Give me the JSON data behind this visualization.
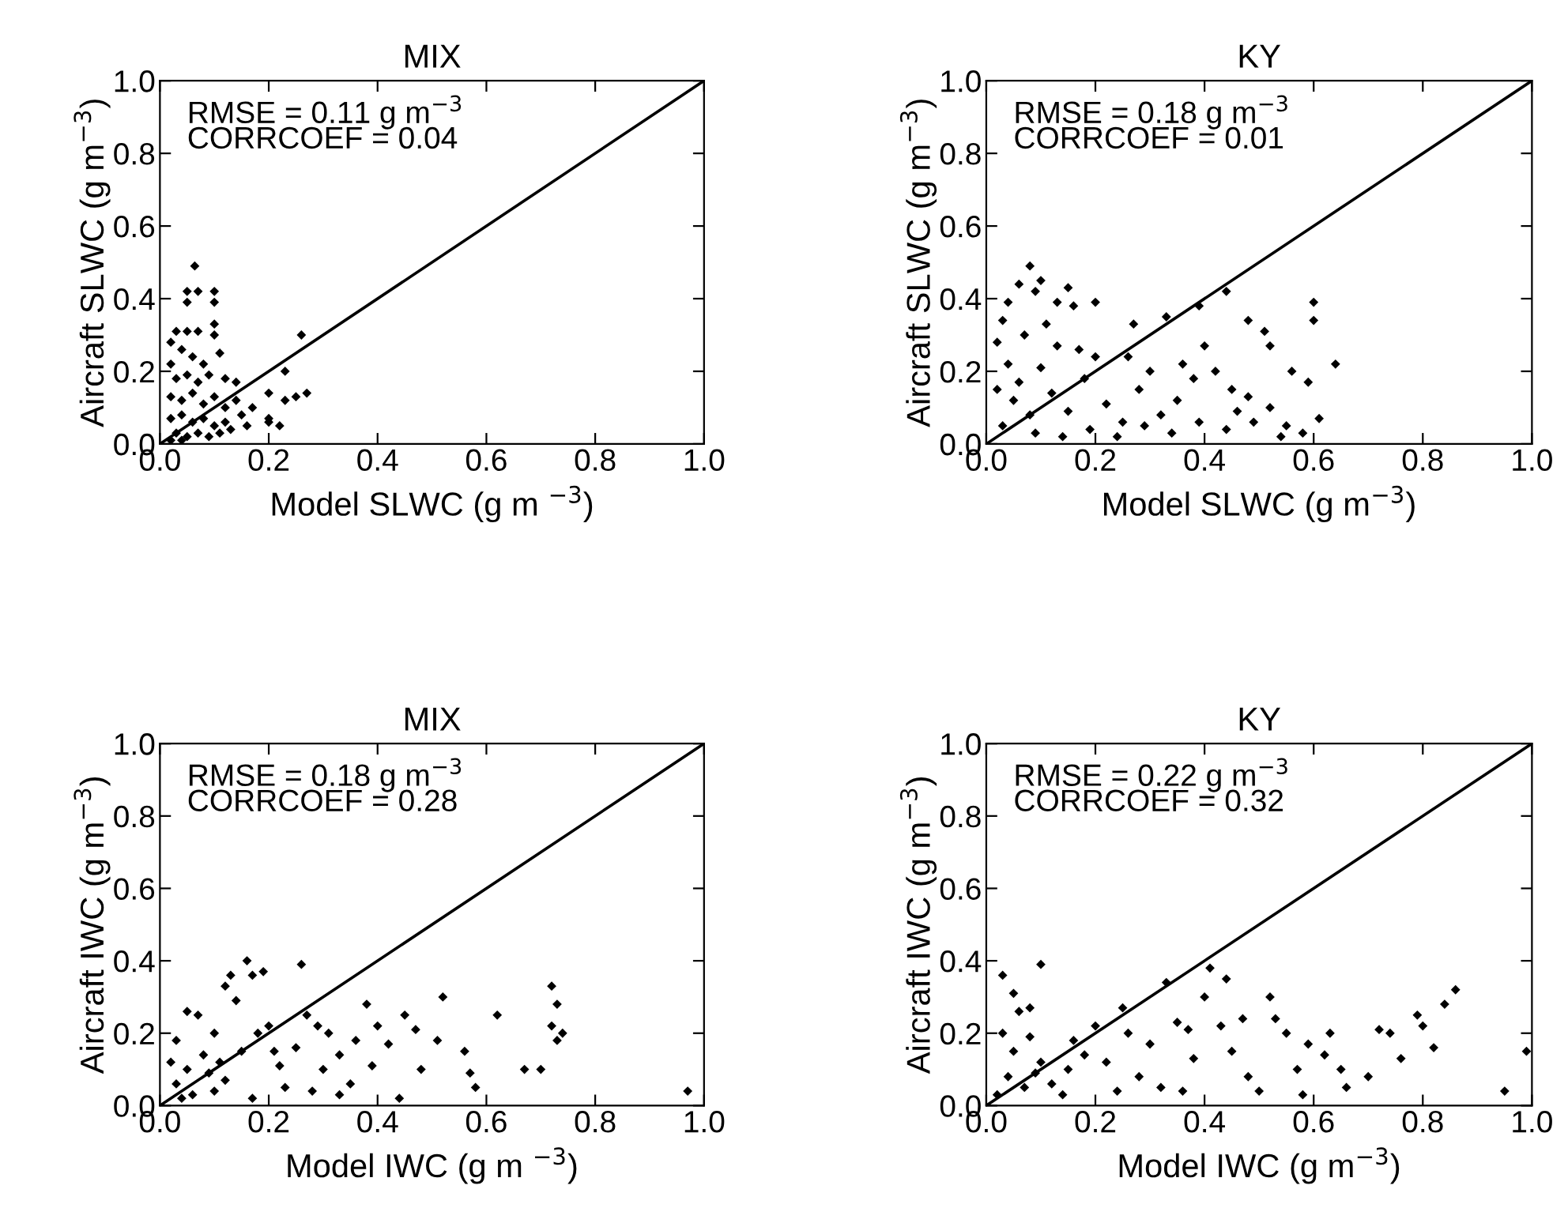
{
  "chart_data": [
    {
      "type": "scatter",
      "title": "MIX",
      "xlabel": "Model SLWC (g m $^{−3}$)",
      "ylabel": "Aircraft SLWC (g m$^{−3}$)",
      "xlim": [
        0,
        1
      ],
      "ylim": [
        0,
        1
      ],
      "xticks": [
        {
          "value": 0,
          "label": "0.0"
        },
        {
          "value": 0.2,
          "label": "0.2"
        },
        {
          "value": 0.4,
          "label": "0.4"
        },
        {
          "value": 0.6,
          "label": "0.6"
        },
        {
          "value": 0.8,
          "label": "0.8"
        },
        {
          "value": 1,
          "label": "1.0"
        }
      ],
      "yticks": [
        {
          "value": 0,
          "label": "0.0"
        },
        {
          "value": 0.2,
          "label": "0.2"
        },
        {
          "value": 0.4,
          "label": "0.4"
        },
        {
          "value": 0.6,
          "label": "0.6"
        },
        {
          "value": 0.8,
          "label": "0.8"
        },
        {
          "value": 1,
          "label": "1.0"
        }
      ],
      "annotations": [
        "RMSE = 0.11 g m$^{−3}$",
        "CORRCOEF = 0.04"
      ],
      "series": [
        {
          "color": "#000000",
          "marker": "diamond",
          "x": [
            0.064,
            0.05,
            0.07,
            0.1,
            0.1,
            0.05,
            0.1,
            0.1,
            0.03,
            0.05,
            0.07,
            0.02,
            0.04,
            0.02,
            0.06,
            0.08,
            0.11,
            0.03,
            0.05,
            0.07,
            0.09,
            0.12,
            0.14,
            0.02,
            0.04,
            0.06,
            0.08,
            0.1,
            0.12,
            0.14,
            0.02,
            0.04,
            0.06,
            0.08,
            0.1,
            0.12,
            0.03,
            0.05,
            0.07,
            0.09,
            0.11,
            0.13,
            0.15,
            0.16,
            0.17,
            0.2,
            0.22,
            0.2,
            0.23,
            0.25,
            0.26,
            0.23,
            0.27,
            0.2,
            0.02,
            0.04
          ],
          "values": [
            0.49,
            0.42,
            0.42,
            0.42,
            0.39,
            0.39,
            0.33,
            0.3,
            0.31,
            0.31,
            0.31,
            0.28,
            0.26,
            0.22,
            0.24,
            0.22,
            0.25,
            0.18,
            0.19,
            0.17,
            0.19,
            0.18,
            0.17,
            0.13,
            0.12,
            0.14,
            0.11,
            0.13,
            0.1,
            0.12,
            0.07,
            0.08,
            0.06,
            0.07,
            0.05,
            0.06,
            0.03,
            0.02,
            0.03,
            0.02,
            0.03,
            0.04,
            0.08,
            0.05,
            0.1,
            0.07,
            0.05,
            0.14,
            0.12,
            0.13,
            0.3,
            0.2,
            0.14,
            0.06,
            0.01,
            0.01
          ]
        },
        {
          "type": "line",
          "color": "#000000",
          "marker": "none",
          "x": [
            0,
            1
          ],
          "values": [
            0,
            1
          ]
        }
      ]
    },
    {
      "type": "scatter",
      "title": "KY",
      "xlabel": "Model SLWC (g m$^{−3}$)",
      "ylabel": "Aircraft SLWC (g m$^{−3}$)",
      "xlim": [
        0,
        1
      ],
      "ylim": [
        0,
        1
      ],
      "xticks": [
        {
          "value": 0,
          "label": "0.0"
        },
        {
          "value": 0.2,
          "label": "0.2"
        },
        {
          "value": 0.4,
          "label": "0.4"
        },
        {
          "value": 0.6,
          "label": "0.6"
        },
        {
          "value": 0.8,
          "label": "0.8"
        },
        {
          "value": 1,
          "label": "1.0"
        }
      ],
      "yticks": [
        {
          "value": 0,
          "label": "0.0"
        },
        {
          "value": 0.2,
          "label": "0.2"
        },
        {
          "value": 0.4,
          "label": "0.4"
        },
        {
          "value": 0.6,
          "label": "0.6"
        },
        {
          "value": 0.8,
          "label": "0.8"
        },
        {
          "value": 1,
          "label": "1.0"
        }
      ],
      "annotations": [
        "RMSE = 0.18 g m$^{−3}$",
        "CORRCOEF = 0.01"
      ],
      "series": [
        {
          "color": "#000000",
          "marker": "diamond",
          "x": [
            0.04,
            0.03,
            0.06,
            0.08,
            0.09,
            0.1,
            0.13,
            0.15,
            0.16,
            0.2,
            0.27,
            0.33,
            0.39,
            0.44,
            0.48,
            0.51,
            0.52,
            0.6,
            0.6,
            0.64,
            0.56,
            0.59,
            0.61,
            0.58,
            0.55,
            0.52,
            0.48,
            0.45,
            0.42,
            0.4,
            0.38,
            0.35,
            0.32,
            0.3,
            0.28,
            0.25,
            0.22,
            0.2,
            0.18,
            0.15,
            0.13,
            0.12,
            0.1,
            0.08,
            0.07,
            0.06,
            0.05,
            0.04,
            0.03,
            0.02,
            0.02,
            0.09,
            0.14,
            0.19,
            0.24,
            0.29,
            0.34,
            0.39,
            0.44,
            0.49,
            0.54,
            0.11,
            0.17,
            0.26,
            0.36,
            0.46
          ],
          "values": [
            0.39,
            0.34,
            0.44,
            0.49,
            0.42,
            0.45,
            0.39,
            0.43,
            0.38,
            0.39,
            0.33,
            0.35,
            0.38,
            0.42,
            0.34,
            0.31,
            0.27,
            0.39,
            0.34,
            0.22,
            0.2,
            0.17,
            0.07,
            0.03,
            0.05,
            0.1,
            0.13,
            0.15,
            0.2,
            0.27,
            0.18,
            0.12,
            0.08,
            0.2,
            0.15,
            0.06,
            0.11,
            0.24,
            0.18,
            0.09,
            0.27,
            0.14,
            0.21,
            0.08,
            0.3,
            0.17,
            0.12,
            0.22,
            0.05,
            0.15,
            0.28,
            0.03,
            0.02,
            0.04,
            0.02,
            0.05,
            0.03,
            0.06,
            0.04,
            0.06,
            0.02,
            0.33,
            0.26,
            0.24,
            0.22,
            0.09
          ]
        },
        {
          "type": "line",
          "color": "#000000",
          "marker": "none",
          "x": [
            0,
            1
          ],
          "values": [
            0,
            1
          ]
        }
      ]
    },
    {
      "type": "scatter",
      "title": "MIX",
      "xlabel": "Model IWC (g m $^{−3}$)",
      "ylabel": "Aircraft IWC (g m$^{−3}$)",
      "xlim": [
        0,
        1
      ],
      "ylim": [
        0,
        1
      ],
      "xticks": [
        {
          "value": 0,
          "label": "0.0"
        },
        {
          "value": 0.2,
          "label": "0.2"
        },
        {
          "value": 0.4,
          "label": "0.4"
        },
        {
          "value": 0.6,
          "label": "0.6"
        },
        {
          "value": 0.8,
          "label": "0.8"
        },
        {
          "value": 1,
          "label": "1.0"
        }
      ],
      "yticks": [
        {
          "value": 0,
          "label": "0.0"
        },
        {
          "value": 0.2,
          "label": "0.2"
        },
        {
          "value": 0.4,
          "label": "0.4"
        },
        {
          "value": 0.6,
          "label": "0.6"
        },
        {
          "value": 0.8,
          "label": "0.8"
        },
        {
          "value": 1,
          "label": "1.0"
        }
      ],
      "annotations": [
        "RMSE = 0.18 g m$^{−3}$",
        "CORRCOEF = 0.28"
      ],
      "series": [
        {
          "color": "#000000",
          "marker": "diamond",
          "x": [
            0.03,
            0.05,
            0.07,
            0.12,
            0.13,
            0.16,
            0.17,
            0.19,
            0.26,
            0.14,
            0.1,
            0.08,
            0.05,
            0.03,
            0.02,
            0.06,
            0.1,
            0.09,
            0.15,
            0.18,
            0.2,
            0.22,
            0.23,
            0.25,
            0.27,
            0.29,
            0.31,
            0.3,
            0.33,
            0.35,
            0.36,
            0.38,
            0.4,
            0.42,
            0.39,
            0.45,
            0.47,
            0.48,
            0.52,
            0.51,
            0.56,
            0.57,
            0.58,
            0.62,
            0.67,
            0.7,
            0.72,
            0.73,
            0.72,
            0.74,
            0.73,
            0.97,
            0.12,
            0.17,
            0.28,
            0.33,
            0.44,
            0.21,
            0.11,
            0.04
          ],
          "values": [
            0.18,
            0.26,
            0.25,
            0.33,
            0.36,
            0.4,
            0.36,
            0.37,
            0.39,
            0.29,
            0.2,
            0.14,
            0.1,
            0.06,
            0.12,
            0.03,
            0.04,
            0.09,
            0.15,
            0.2,
            0.22,
            0.11,
            0.05,
            0.16,
            0.25,
            0.22,
            0.2,
            0.1,
            0.14,
            0.06,
            0.18,
            0.28,
            0.22,
            0.17,
            0.11,
            0.25,
            0.21,
            0.1,
            0.3,
            0.18,
            0.15,
            0.09,
            0.05,
            0.25,
            0.1,
            0.1,
            0.33,
            0.28,
            0.22,
            0.2,
            0.18,
            0.04,
            0.07,
            0.02,
            0.04,
            0.03,
            0.02,
            0.15,
            0.12,
            0.02
          ]
        },
        {
          "type": "line",
          "color": "#000000",
          "marker": "none",
          "x": [
            0,
            1
          ],
          "values": [
            0,
            1
          ]
        }
      ]
    },
    {
      "type": "scatter",
      "title": "KY",
      "xlabel": "Model IWC (g m$^{−3}$)",
      "ylabel": "Aircraft IWC (g m$^{−3}$)",
      "xlim": [
        0,
        1
      ],
      "ylim": [
        0,
        1
      ],
      "xticks": [
        {
          "value": 0,
          "label": "0.0"
        },
        {
          "value": 0.2,
          "label": "0.2"
        },
        {
          "value": 0.4,
          "label": "0.4"
        },
        {
          "value": 0.6,
          "label": "0.6"
        },
        {
          "value": 0.8,
          "label": "0.8"
        },
        {
          "value": 1,
          "label": "1.0"
        }
      ],
      "yticks": [
        {
          "value": 0,
          "label": "0.0"
        },
        {
          "value": 0.2,
          "label": "0.2"
        },
        {
          "value": 0.4,
          "label": "0.4"
        },
        {
          "value": 0.6,
          "label": "0.6"
        },
        {
          "value": 0.8,
          "label": "0.8"
        },
        {
          "value": 1,
          "label": "1.0"
        }
      ],
      "annotations": [
        "RMSE = 0.22 g m$^{−3}$",
        "CORRCOEF = 0.32"
      ],
      "series": [
        {
          "color": "#000000",
          "marker": "diamond",
          "x": [
            0.03,
            0.05,
            0.1,
            0.06,
            0.08,
            0.03,
            0.05,
            0.08,
            0.1,
            0.04,
            0.07,
            0.12,
            0.15,
            0.18,
            0.2,
            0.22,
            0.25,
            0.26,
            0.28,
            0.3,
            0.32,
            0.33,
            0.35,
            0.37,
            0.38,
            0.4,
            0.41,
            0.43,
            0.44,
            0.45,
            0.47,
            0.48,
            0.52,
            0.53,
            0.55,
            0.57,
            0.59,
            0.62,
            0.63,
            0.65,
            0.66,
            0.7,
            0.72,
            0.74,
            0.76,
            0.79,
            0.8,
            0.82,
            0.84,
            0.86,
            0.95,
            0.99,
            0.14,
            0.24,
            0.36,
            0.5,
            0.58,
            0.02,
            0.09,
            0.16
          ],
          "values": [
            0.36,
            0.31,
            0.39,
            0.26,
            0.27,
            0.2,
            0.15,
            0.19,
            0.12,
            0.08,
            0.05,
            0.06,
            0.1,
            0.14,
            0.22,
            0.12,
            0.27,
            0.2,
            0.08,
            0.17,
            0.05,
            0.34,
            0.23,
            0.21,
            0.13,
            0.3,
            0.38,
            0.22,
            0.35,
            0.15,
            0.24,
            0.08,
            0.3,
            0.24,
            0.2,
            0.1,
            0.17,
            0.14,
            0.2,
            0.1,
            0.05,
            0.08,
            0.21,
            0.2,
            0.13,
            0.25,
            0.22,
            0.16,
            0.28,
            0.32,
            0.04,
            0.15,
            0.03,
            0.04,
            0.04,
            0.04,
            0.03,
            0.03,
            0.09,
            0.18
          ]
        },
        {
          "type": "line",
          "color": "#000000",
          "marker": "none",
          "x": [
            0,
            1
          ],
          "values": [
            0,
            1
          ]
        }
      ]
    }
  ]
}
